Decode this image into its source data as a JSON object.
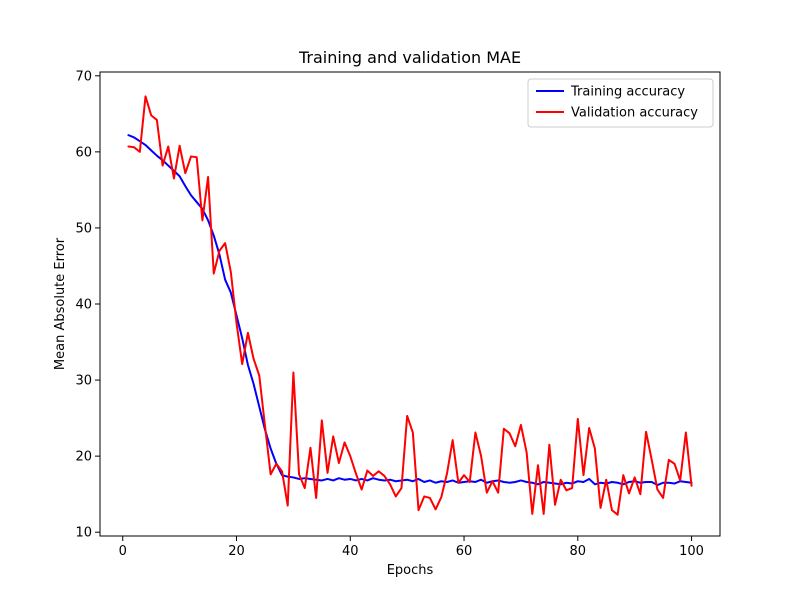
{
  "chart_data": {
    "type": "line",
    "title": "Training and validation MAE",
    "xlabel": "Epochs",
    "ylabel": "Mean Absolute Error",
    "xlim": [
      -4,
      105
    ],
    "ylim": [
      9.5,
      70.5
    ],
    "xticks": [
      0,
      20,
      40,
      60,
      80,
      100
    ],
    "yticks": [
      10,
      20,
      30,
      40,
      50,
      60,
      70
    ],
    "grid": false,
    "legend_position": "top-right",
    "x": [
      1,
      2,
      3,
      4,
      5,
      6,
      7,
      8,
      9,
      10,
      11,
      12,
      13,
      14,
      15,
      16,
      17,
      18,
      19,
      20,
      21,
      22,
      23,
      24,
      25,
      26,
      27,
      28,
      29,
      30,
      31,
      32,
      33,
      34,
      35,
      36,
      37,
      38,
      39,
      40,
      41,
      42,
      43,
      44,
      45,
      46,
      47,
      48,
      49,
      50,
      51,
      52,
      53,
      54,
      55,
      56,
      57,
      58,
      59,
      60,
      61,
      62,
      63,
      64,
      65,
      66,
      67,
      68,
      69,
      70,
      71,
      72,
      73,
      74,
      75,
      76,
      77,
      78,
      79,
      80,
      81,
      82,
      83,
      84,
      85,
      86,
      87,
      88,
      89,
      90,
      91,
      92,
      93,
      94,
      95,
      96,
      97,
      98,
      99,
      100
    ],
    "series": [
      {
        "name": "Training accuracy",
        "color": "#0000ff",
        "values": [
          62.2,
          61.9,
          61.4,
          60.9,
          60.2,
          59.5,
          58.9,
          58.2,
          57.5,
          56.8,
          55.5,
          54.3,
          53.4,
          52.5,
          51.0,
          49.0,
          46.5,
          43.2,
          41.5,
          38.5,
          35.5,
          32.0,
          29.5,
          26.5,
          23.5,
          21.0,
          19.0,
          17.5,
          17.3,
          17.2,
          17.0,
          17.1,
          17.0,
          16.9,
          16.8,
          17.0,
          16.8,
          17.1,
          16.9,
          17.0,
          16.8,
          17.0,
          16.8,
          17.1,
          16.9,
          16.8,
          16.9,
          16.7,
          16.8,
          16.9,
          16.7,
          17.0,
          16.6,
          16.8,
          16.5,
          16.7,
          16.6,
          16.8,
          16.5,
          16.6,
          16.7,
          16.6,
          16.9,
          16.5,
          16.7,
          16.8,
          16.6,
          16.5,
          16.6,
          16.8,
          16.6,
          16.5,
          16.3,
          16.6,
          16.5,
          16.4,
          16.3,
          16.5,
          16.4,
          16.7,
          16.6,
          17.0,
          16.3,
          16.5,
          16.4,
          16.6,
          16.5,
          16.3,
          16.6,
          16.7,
          16.5,
          16.6,
          16.6,
          16.2,
          16.5,
          16.5,
          16.4,
          16.7,
          16.6,
          16.5
        ]
      },
      {
        "name": "Validation accuracy",
        "color": "#ff0000",
        "values": [
          60.7,
          60.6,
          60.0,
          67.3,
          64.8,
          64.2,
          58.2,
          60.7,
          56.5,
          60.8,
          57.2,
          59.4,
          59.3,
          51.0,
          56.7,
          44.0,
          47.0,
          48.0,
          44.2,
          37.5,
          32.1,
          36.2,
          32.8,
          30.6,
          24.0,
          17.6,
          19.0,
          18.0,
          13.5,
          31.0,
          17.6,
          15.8,
          21.1,
          14.5,
          24.7,
          17.8,
          22.6,
          19.1,
          21.8,
          20.0,
          17.7,
          15.6,
          18.1,
          17.4,
          18.0,
          17.4,
          16.3,
          14.7,
          15.8,
          25.3,
          23.1,
          12.9,
          14.7,
          14.5,
          13.0,
          14.6,
          17.7,
          22.1,
          16.5,
          17.5,
          16.6,
          23.1,
          20.0,
          15.2,
          16.7,
          15.2,
          23.6,
          23.0,
          21.3,
          24.1,
          20.5,
          12.4,
          18.8,
          12.4,
          21.5,
          13.6,
          16.9,
          15.5,
          15.8,
          24.9,
          17.5,
          23.7,
          21.0,
          13.2,
          16.9,
          12.9,
          12.3,
          17.5,
          15.1,
          17.2,
          15.0,
          23.2,
          19.5,
          15.6,
          14.5,
          19.5,
          19.0,
          16.8,
          23.1,
          16.1
        ]
      }
    ]
  }
}
